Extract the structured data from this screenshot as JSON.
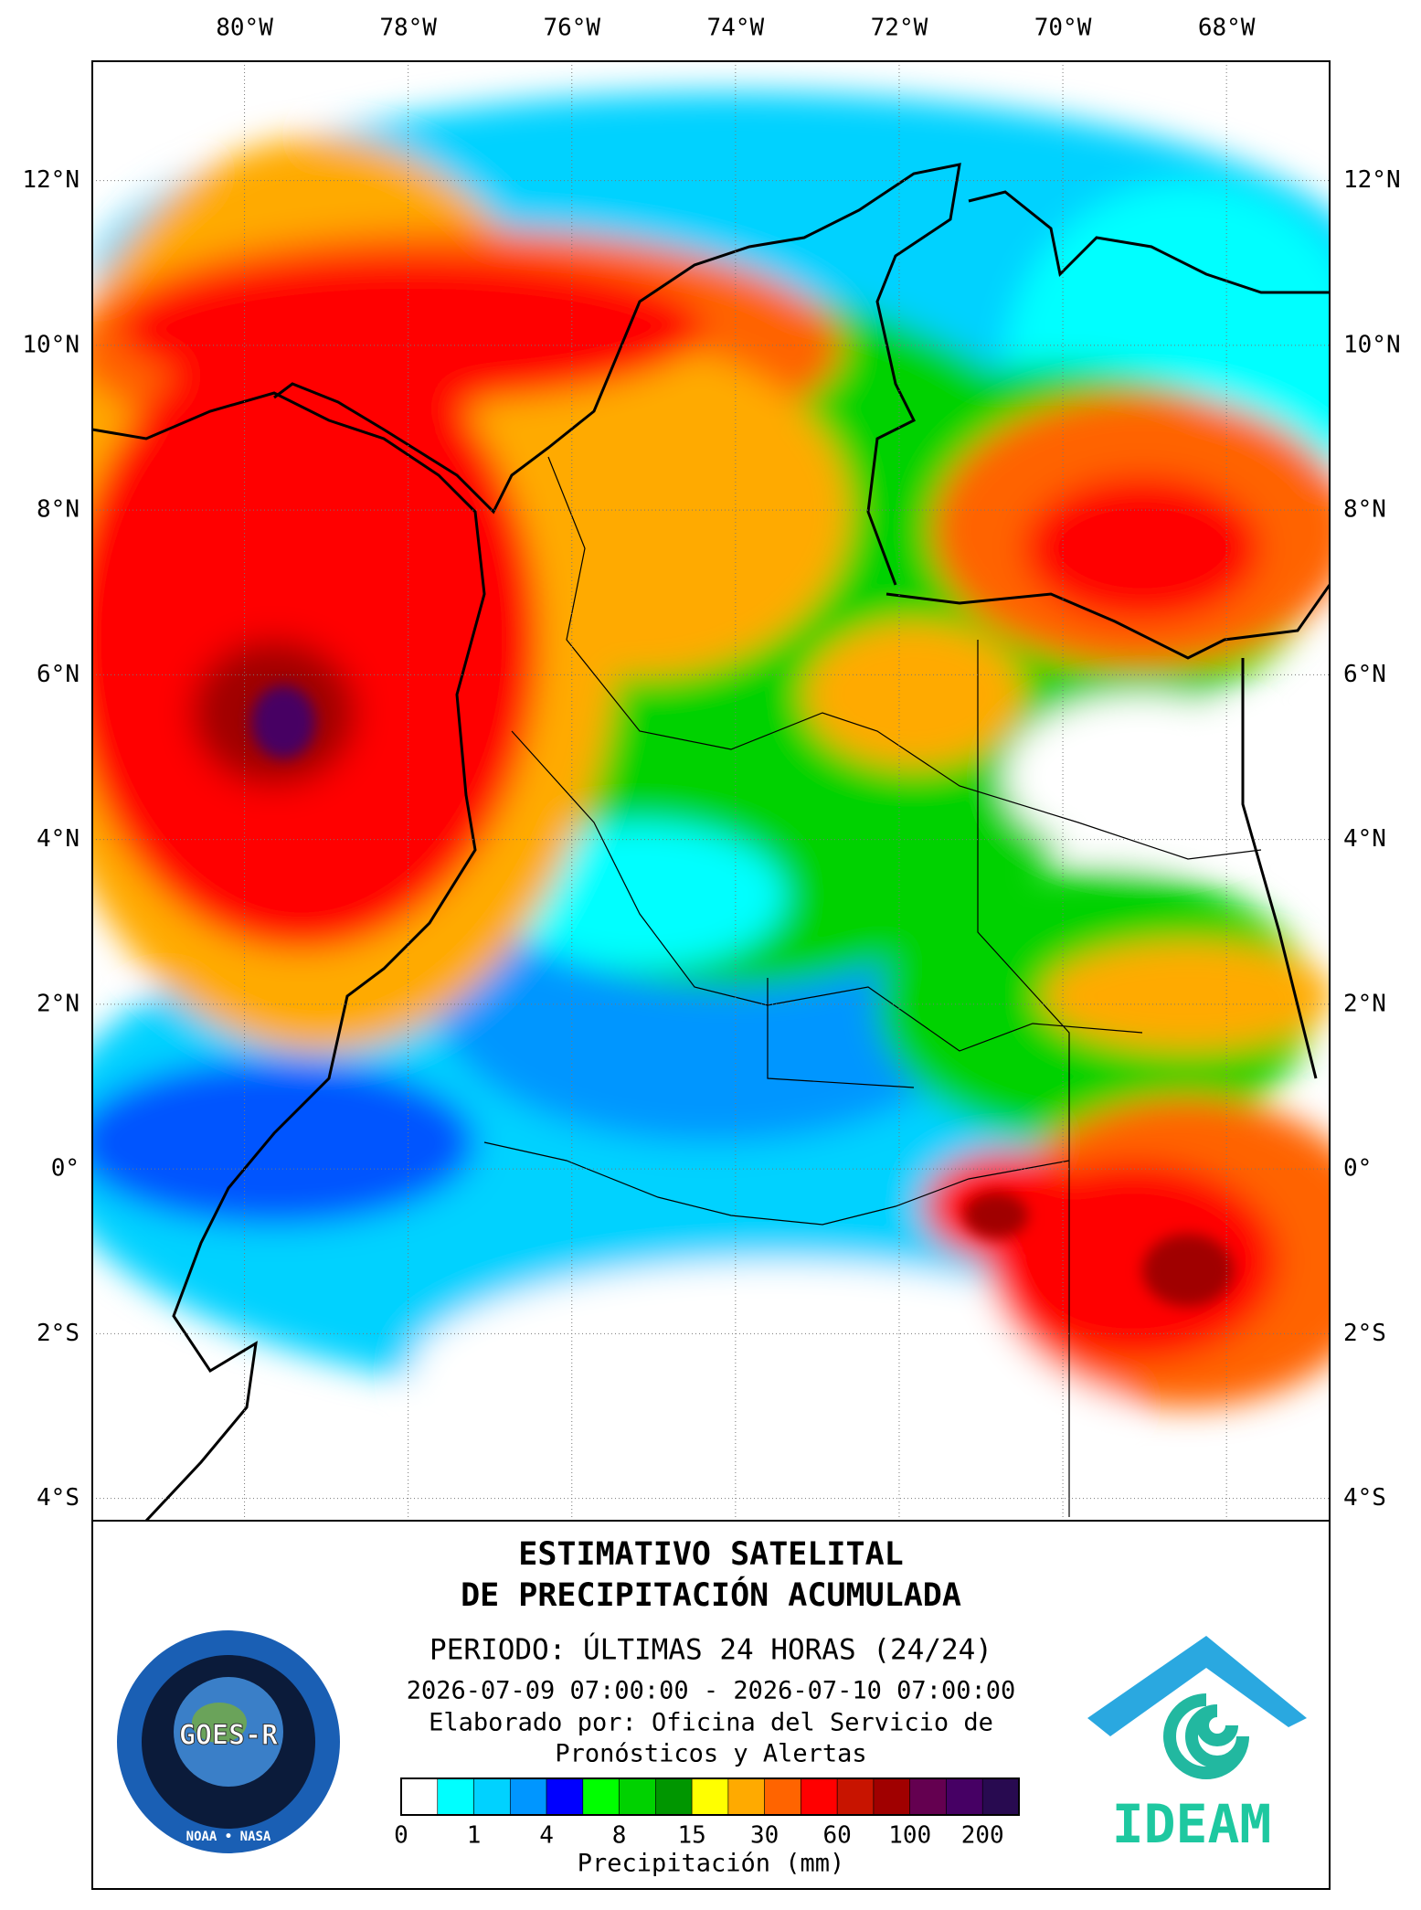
{
  "map": {
    "lon_range": [
      -81.86,
      -66.74
    ],
    "lat_range": [
      -4.27,
      13.45
    ],
    "lon_ticks": [
      {
        "value": -80,
        "label": "80°W"
      },
      {
        "value": -78,
        "label": "78°W"
      },
      {
        "value": -76,
        "label": "76°W"
      },
      {
        "value": -74,
        "label": "74°W"
      },
      {
        "value": -72,
        "label": "72°W"
      },
      {
        "value": -70,
        "label": "70°W"
      },
      {
        "value": -68,
        "label": "68°W"
      }
    ],
    "lat_ticks": [
      {
        "value": 12,
        "label": "12°N"
      },
      {
        "value": 10,
        "label": "10°N"
      },
      {
        "value": 8,
        "label": "8°N"
      },
      {
        "value": 6,
        "label": "6°N"
      },
      {
        "value": 4,
        "label": "4°N"
      },
      {
        "value": 2,
        "label": "2°N"
      },
      {
        "value": 0,
        "label": "0°"
      },
      {
        "value": -2,
        "label": "2°S"
      },
      {
        "value": -4,
        "label": "4°S"
      }
    ]
  },
  "footer": {
    "title_line1": "ESTIMATIVO SATELITAL",
    "title_line2": "DE PRECIPITACIÓN ACUMULADA",
    "period": "PERIODO: ÚLTIMAS 24 HORAS (24/24)",
    "dates": "2026-07-09 07:00:00 - 2026-07-10 07:00:00",
    "credit_line1": "Elaborado por: Oficina del Servicio de",
    "credit_line2": "Pronósticos y Alertas",
    "goes_logo": "GOES-R",
    "goes_agencies": "NOAA • NASA",
    "ideam_logo": "IDEAM"
  },
  "legend": {
    "title": "Precipitación (mm)",
    "colors": [
      "#ffffff",
      "#00ffff",
      "#00d2ff",
      "#0096ff",
      "#0000ff",
      "#00ff00",
      "#00d200",
      "#009600",
      "#ffff00",
      "#ffaa00",
      "#ff6400",
      "#ff0000",
      "#c81400",
      "#a00000",
      "#640050",
      "#460064",
      "#280a50"
    ],
    "labels": [
      0,
      1,
      4,
      8,
      15,
      30,
      60,
      100,
      200
    ]
  }
}
